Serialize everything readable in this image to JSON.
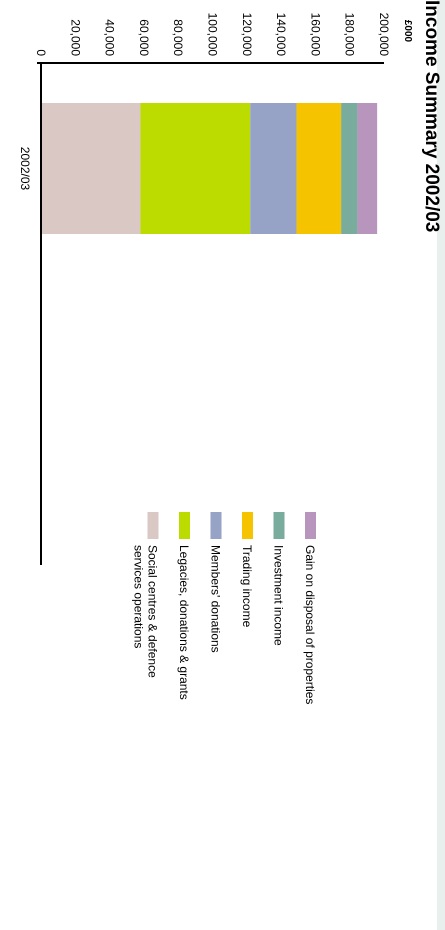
{
  "chart_data": {
    "type": "bar",
    "stacked": true,
    "title": "Income Summary 2002/03",
    "ylabel": "£000",
    "categories": [
      "2002/03"
    ],
    "ylim": [
      0,
      200000
    ],
    "yticks": [
      0,
      20000,
      40000,
      60000,
      80000,
      100000,
      120000,
      140000,
      160000,
      180000,
      200000
    ],
    "ytick_labels": [
      "0",
      "20,000",
      "40,000",
      "60,000",
      "80,000",
      "100,000",
      "120,000",
      "140,000",
      "160,000",
      "180,000",
      "200,000"
    ],
    "grid": false,
    "legend_position": "right",
    "series": [
      {
        "name": "Social centres & defence services operations",
        "legend_lines": [
          "Social centres & defence",
          "services operations"
        ],
        "color": "#d9c8c4",
        "values": [
          58000
        ]
      },
      {
        "name": "Legacies, donations & grants",
        "legend_lines": [
          "Legacies, donations & grants"
        ],
        "color": "#bcdc00",
        "values": [
          64000
        ]
      },
      {
        "name": "Members' donations",
        "legend_lines": [
          "Members' donations"
        ],
        "color": "#96a3c6",
        "values": [
          27000
        ]
      },
      {
        "name": "Trading income",
        "legend_lines": [
          "Trading income"
        ],
        "color": "#f5c300",
        "values": [
          26000
        ]
      },
      {
        "name": "Investment income",
        "legend_lines": [
          "Investment income"
        ],
        "color": "#7aac9e",
        "values": [
          9500
        ]
      },
      {
        "name": "Gain on disposal of properties",
        "legend_lines": [
          "Gain on disposal of properties"
        ],
        "color": "#b895bc",
        "values": [
          11500
        ]
      }
    ]
  }
}
